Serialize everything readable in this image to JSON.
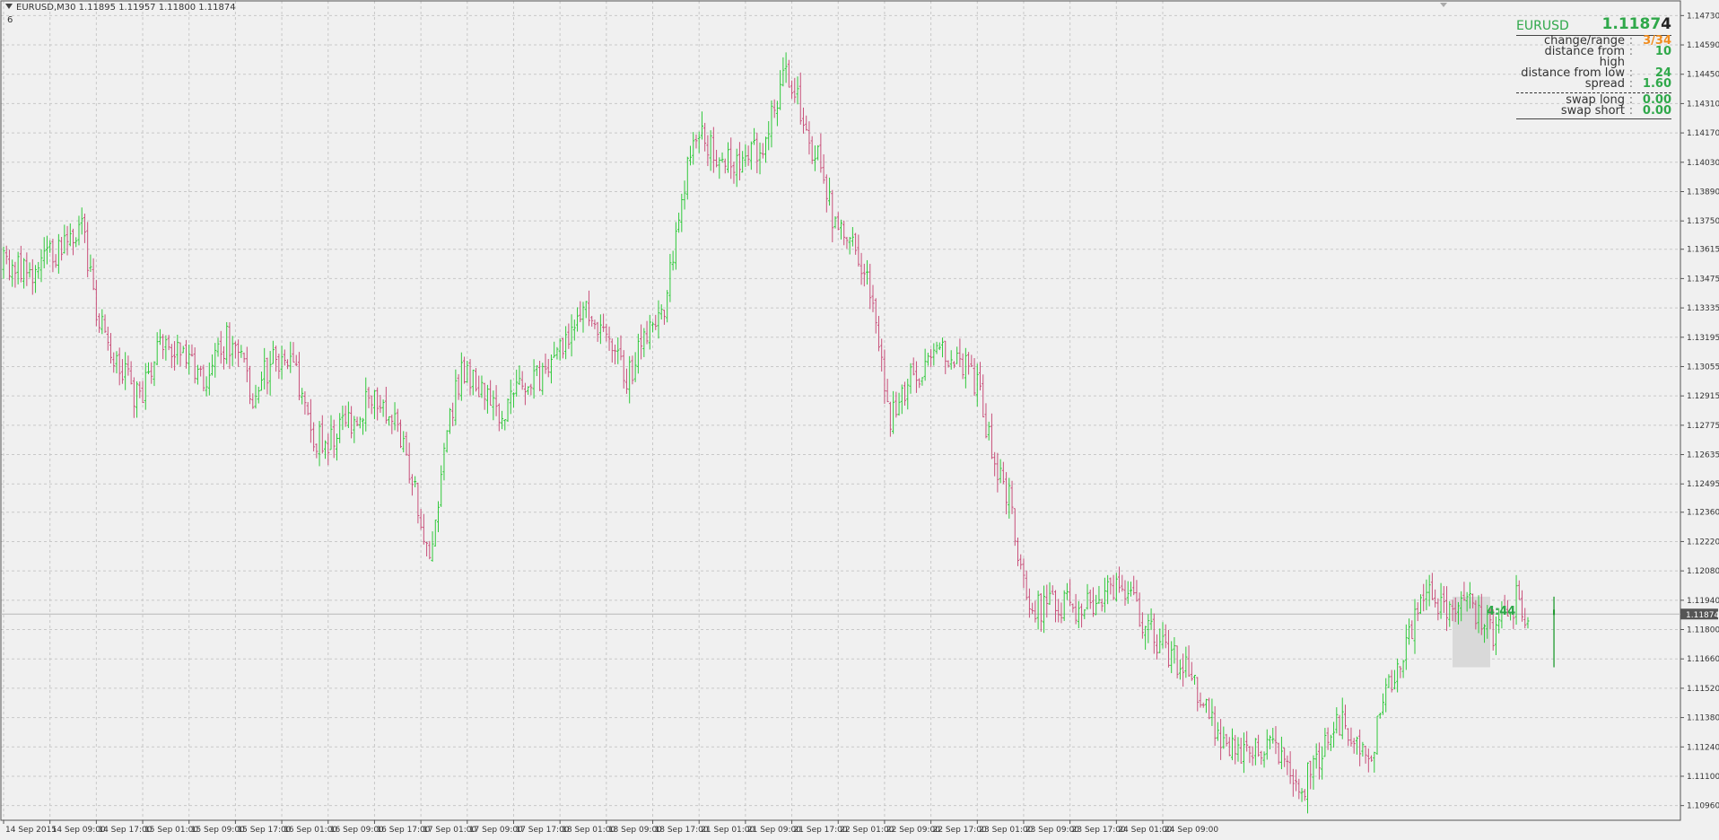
{
  "header": {
    "symbol_line": "EURUSD,M30  1.11895 1.11957 1.11800 1.11874",
    "sub_label": "6"
  },
  "panel": {
    "symbol": "EURUSD",
    "price": "1.11874",
    "rows": [
      {
        "label": "change/range",
        "value": "3/34",
        "color": "#f08c1e"
      },
      {
        "label": "distance from high",
        "value": "10",
        "color": "#2fa84a"
      },
      {
        "label": "distance from low",
        "value": "24",
        "color": "#2fa84a"
      },
      {
        "label": "spread",
        "value": "1.60",
        "color": "#2fa84a"
      }
    ],
    "swap_rows": [
      {
        "label": "swap long",
        "value": "0.00",
        "color": "#2fa84a"
      },
      {
        "label": "swap short",
        "value": "0.00",
        "color": "#2fa84a"
      }
    ]
  },
  "countdown": "4:44",
  "chart_data": {
    "type": "ohlc",
    "symbol": "EURUSD",
    "timeframe": "M30",
    "ylim": [
      1.1089,
      1.148
    ],
    "y_ticks": [
      "1.14730",
      "1.14590",
      "1.14450",
      "1.14310",
      "1.14170",
      "1.14030",
      "1.13890",
      "1.13750",
      "1.13615",
      "1.13475",
      "1.13335",
      "1.13195",
      "1.13055",
      "1.12915",
      "1.12775",
      "1.12635",
      "1.12495",
      "1.12360",
      "1.12220",
      "1.12080",
      "1.11940",
      "1.11800",
      "1.11660",
      "1.11520",
      "1.11380",
      "1.11240",
      "1.11100",
      "1.10960"
    ],
    "x_ticks": [
      "14 Sep 2015",
      "14 Sep 09:00",
      "14 Sep 17:00",
      "15 Sep 01:00",
      "15 Sep 09:00",
      "15 Sep 17:00",
      "16 Sep 01:00",
      "16 Sep 09:00",
      "16 Sep 17:00",
      "17 Sep 01:00",
      "17 Sep 09:00",
      "17 Sep 17:00",
      "18 Sep 01:00",
      "18 Sep 09:00",
      "18 Sep 17:00",
      "21 Sep 01:00",
      "21 Sep 09:00",
      "21 Sep 17:00",
      "22 Sep 01:00",
      "22 Sep 09:00",
      "22 Sep 17:00",
      "23 Sep 01:00",
      "23 Sep 09:00",
      "23 Sep 17:00",
      "24 Sep 01:00",
      "24 Sep 09:00"
    ],
    "current_price": "1.11874",
    "up_color": "#2fc83a",
    "down_color": "#c8507a",
    "range_box": {
      "from": "24 Sep 00:00",
      "to": "24 Sep 06:30",
      "high": 1.11957,
      "low": 1.1162
    },
    "close_path": [
      [
        0,
        1.1355
      ],
      [
        10,
        1.1349
      ],
      [
        20,
        1.1363
      ],
      [
        27,
        1.1372
      ],
      [
        33,
        1.1326
      ],
      [
        40,
        1.1306
      ],
      [
        47,
        1.1288
      ],
      [
        54,
        1.1322
      ],
      [
        61,
        1.1312
      ],
      [
        69,
        1.1296
      ],
      [
        77,
        1.1318
      ],
      [
        81,
        1.131
      ],
      [
        86,
        1.1292
      ],
      [
        93,
        1.1309
      ],
      [
        100,
        1.1305
      ],
      [
        107,
        1.127
      ],
      [
        114,
        1.1272
      ],
      [
        120,
        1.128
      ],
      [
        128,
        1.1291
      ],
      [
        135,
        1.1283
      ],
      [
        142,
        1.1245
      ],
      [
        147,
        1.121
      ],
      [
        153,
        1.1272
      ],
      [
        158,
        1.1305
      ],
      [
        165,
        1.1292
      ],
      [
        171,
        1.1282
      ],
      [
        179,
        1.1296
      ],
      [
        187,
        1.1302
      ],
      [
        195,
        1.1318
      ],
      [
        201,
        1.1333
      ],
      [
        208,
        1.1318
      ],
      [
        215,
        1.1298
      ],
      [
        221,
        1.132
      ],
      [
        228,
        1.1333
      ],
      [
        233,
        1.1375
      ],
      [
        238,
        1.142
      ],
      [
        241,
        1.1416
      ],
      [
        246,
        1.1405
      ],
      [
        251,
        1.1403
      ],
      [
        257,
        1.1403
      ],
      [
        263,
        1.1415
      ],
      [
        266,
        1.1428
      ],
      [
        270,
        1.1444
      ],
      [
        273,
        1.1438
      ],
      [
        277,
        1.1415
      ],
      [
        282,
        1.1402
      ],
      [
        287,
        1.1372
      ],
      [
        293,
        1.1362
      ],
      [
        297,
        1.1352
      ],
      [
        302,
        1.1318
      ],
      [
        306,
        1.128
      ],
      [
        312,
        1.1298
      ],
      [
        318,
        1.1302
      ],
      [
        324,
        1.1312
      ],
      [
        330,
        1.1311
      ],
      [
        336,
        1.1296
      ],
      [
        342,
        1.1262
      ],
      [
        348,
        1.1238
      ],
      [
        352,
        1.1202
      ],
      [
        356,
        1.119
      ],
      [
        364,
        1.1193
      ],
      [
        372,
        1.1189
      ],
      [
        380,
        1.1196
      ],
      [
        386,
        1.1202
      ],
      [
        390,
        1.1193
      ],
      [
        396,
        1.1178
      ],
      [
        402,
        1.1168
      ],
      [
        408,
        1.1162
      ],
      [
        414,
        1.1146
      ],
      [
        420,
        1.1128
      ],
      [
        426,
        1.1122
      ],
      [
        432,
        1.1126
      ],
      [
        438,
        1.1124
      ],
      [
        444,
        1.1112
      ],
      [
        448,
        1.1105
      ],
      [
        454,
        1.1118
      ],
      [
        458,
        1.113
      ],
      [
        462,
        1.1138
      ],
      [
        468,
        1.1125
      ],
      [
        472,
        1.1123
      ],
      [
        476,
        1.1144
      ],
      [
        480,
        1.1158
      ],
      [
        484,
        1.117
      ],
      [
        488,
        1.119
      ],
      [
        492,
        1.1198
      ],
      [
        496,
        1.1192
      ],
      [
        500,
        1.1187
      ],
      [
        505,
        1.1192
      ],
      [
        510,
        1.1186
      ],
      [
        514,
        1.1176
      ],
      [
        518,
        1.1186
      ],
      [
        522,
        1.1194
      ],
      [
        524,
        1.119
      ],
      [
        526,
        1.1187
      ]
    ],
    "total_bars": 527
  }
}
